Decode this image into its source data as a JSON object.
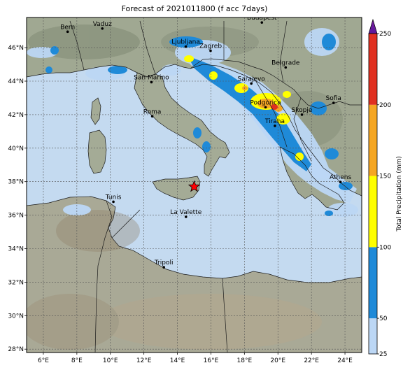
{
  "title": "Forecast of 2021011800 (f acc 7days)",
  "axes": {
    "lon_ticks": [
      "6°E",
      "8°E",
      "10°E",
      "12°E",
      "14°E",
      "16°E",
      "18°E",
      "20°E",
      "22°E",
      "24°E"
    ],
    "lat_ticks": [
      "46°N",
      "44°N",
      "42°N",
      "40°N",
      "38°N",
      "36°N",
      "34°N",
      "32°N",
      "30°N",
      "28°N"
    ],
    "lon_values": [
      6,
      8,
      10,
      12,
      14,
      16,
      18,
      20,
      22,
      24
    ],
    "lat_values": [
      46,
      44,
      42,
      40,
      38,
      36,
      34,
      32,
      30,
      28
    ],
    "lon_range": [
      5,
      25
    ],
    "lat_range": [
      27.8,
      47.8
    ],
    "grid": true
  },
  "colorbar": {
    "label": "Total Precipitation (mm)",
    "ticks": [
      "25",
      "50",
      "100",
      "150",
      "200",
      "250"
    ],
    "tick_values": [
      25,
      50,
      100,
      150,
      200,
      250
    ],
    "colors": [
      "#bcd7f5",
      "#1f8ad8",
      "#ffff00",
      "#f5a623",
      "#e03020"
    ],
    "extend_color": "#7b1fa2"
  },
  "cities": [
    {
      "name": "Bern",
      "lon": 7.45,
      "lat": 46.95
    },
    {
      "name": "Vaduz",
      "lon": 9.52,
      "lat": 47.14
    },
    {
      "name": "Budapest",
      "lon": 19.04,
      "lat": 47.5
    },
    {
      "name": "Ljubljana",
      "lon": 14.5,
      "lat": 46.06
    },
    {
      "name": "Zagreb",
      "lon": 15.98,
      "lat": 45.81
    },
    {
      "name": "Belgrade",
      "lon": 20.46,
      "lat": 44.82
    },
    {
      "name": "San Marino",
      "lon": 12.45,
      "lat": 43.94
    },
    {
      "name": "Sarajevo",
      "lon": 18.41,
      "lat": 43.86
    },
    {
      "name": "Sofia",
      "lon": 23.32,
      "lat": 42.7
    },
    {
      "name": "Podgorica",
      "lon": 19.26,
      "lat": 42.44
    },
    {
      "name": "Skopje",
      "lon": 21.43,
      "lat": 42.0
    },
    {
      "name": "Roma",
      "lon": 12.5,
      "lat": 41.9
    },
    {
      "name": "Tirana",
      "lon": 19.82,
      "lat": 41.33
    },
    {
      "name": "Athens",
      "lon": 23.73,
      "lat": 37.98
    },
    {
      "name": "Tunis",
      "lon": 10.18,
      "lat": 36.8
    },
    {
      "name": "La Valette",
      "lon": 14.51,
      "lat": 35.9
    },
    {
      "name": "Tripoli",
      "lon": 13.19,
      "lat": 32.89
    }
  ],
  "marker": {
    "name": "star",
    "lon": 15.0,
    "lat": 37.7,
    "color": "#ff0000"
  },
  "colors": {
    "sea": "#c4daf0",
    "land": "#a7ab9a",
    "border": "#1a1a1a"
  }
}
